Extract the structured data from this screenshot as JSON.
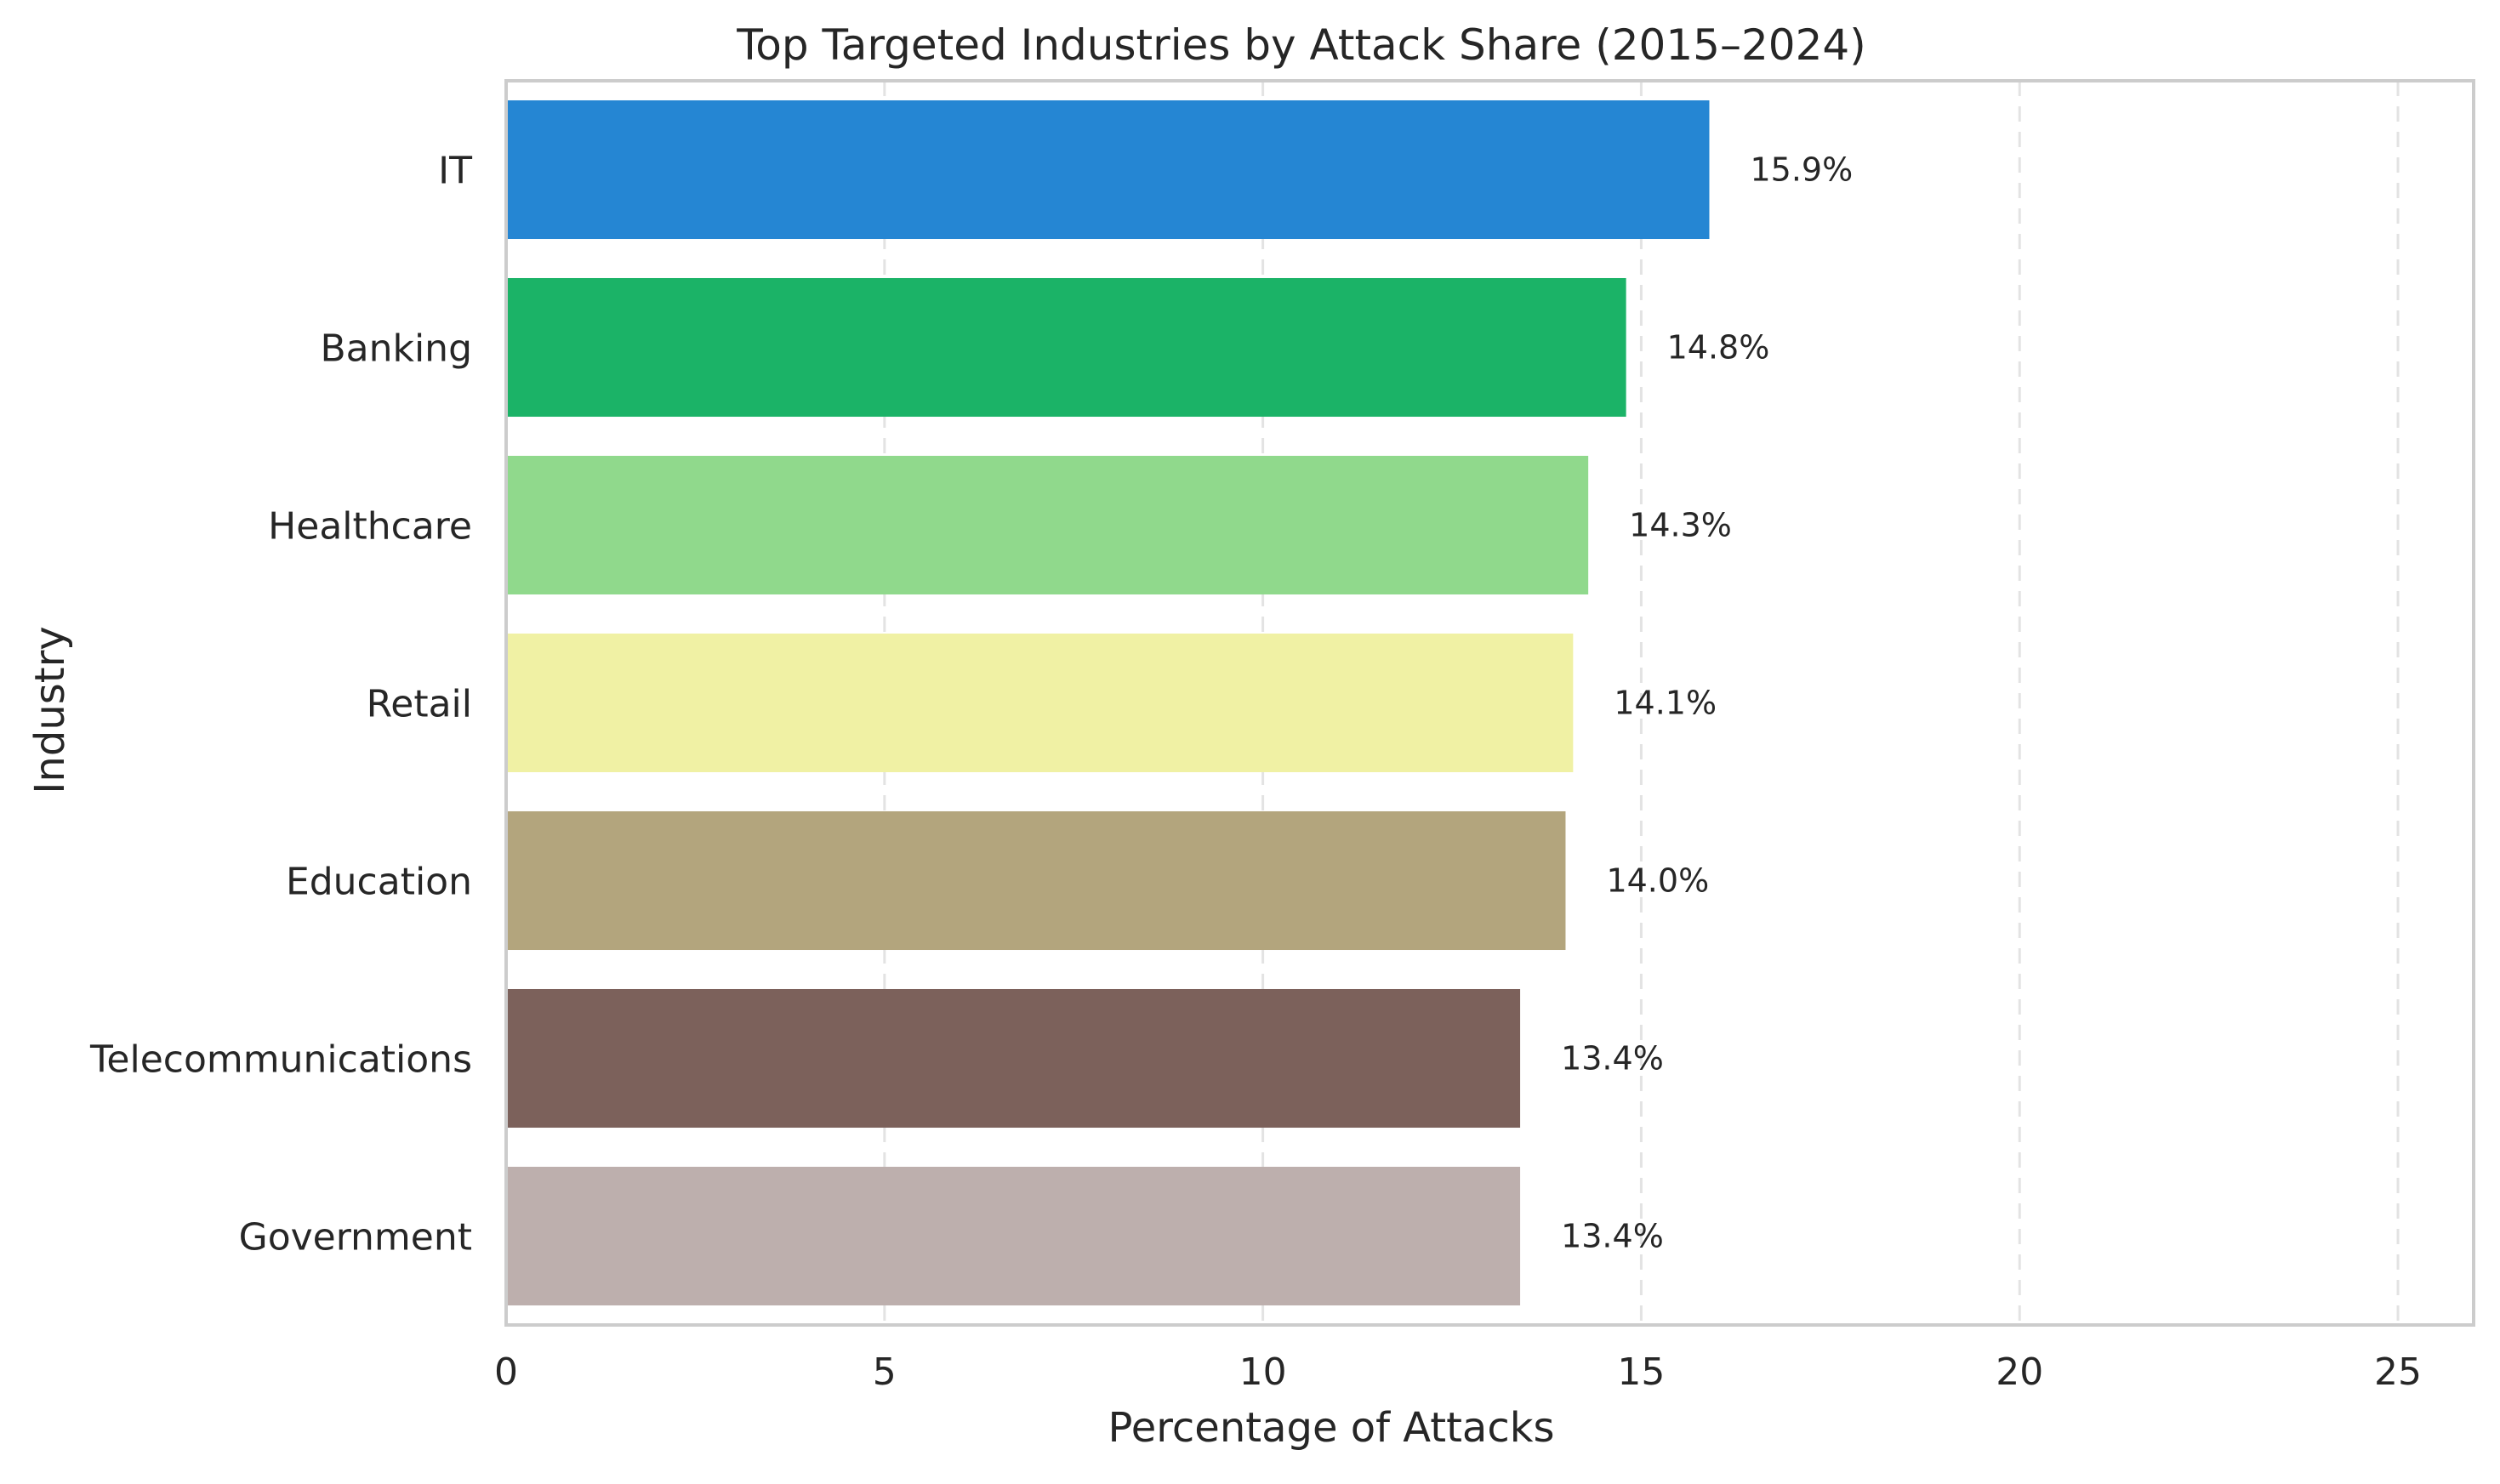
{
  "chart_data": {
    "type": "bar",
    "orientation": "horizontal",
    "title": "Top Targeted Industries by Attack Share (2015–2024)",
    "xlabel": "Percentage of Attacks",
    "ylabel": "Industry",
    "xlim": [
      0,
      26
    ],
    "xticks": [
      0,
      5,
      10,
      15,
      20,
      25
    ],
    "grid": "vertical dashed",
    "categories": [
      "IT",
      "Banking",
      "Healthcare",
      "Retail",
      "Education",
      "Telecommunications",
      "Government"
    ],
    "values": [
      15.9,
      14.8,
      14.3,
      14.1,
      14.0,
      13.4,
      13.4
    ],
    "value_labels": [
      "15.9%",
      "14.8%",
      "14.3%",
      "14.1%",
      "14.0%",
      "13.4%",
      "13.4%"
    ],
    "colors": [
      "#2586d3",
      "#1bb367",
      "#90d98c",
      "#f0f1a4",
      "#b3a57d",
      "#7c615b",
      "#bdafad"
    ]
  }
}
